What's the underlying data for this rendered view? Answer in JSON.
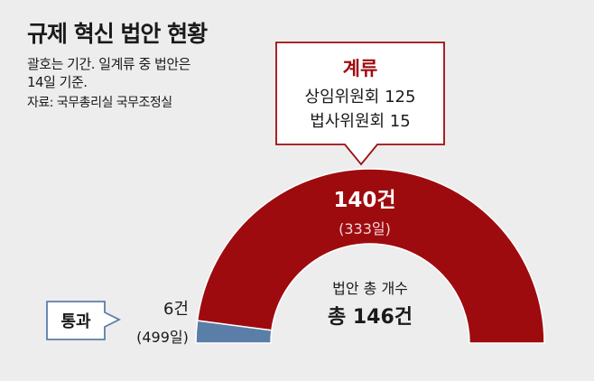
{
  "header": {
    "title": "규제 혁신 법안 현황",
    "note_line1": "괄호는 기간. 일계류 중 법안은",
    "note_line2": "14일 기준.",
    "source": "자료: 국무총리실 국무조정실"
  },
  "chart_data": {
    "type": "pie",
    "style": "semi-donut",
    "total_label": "법안 총 개수",
    "total_value_label": "총 146건",
    "total": 146,
    "segments": [
      {
        "category": "통과",
        "value": 6,
        "value_label": "6건",
        "duration_label": "(499일)",
        "color": "#5b7ea8"
      },
      {
        "category": "계류",
        "value": 140,
        "value_label": "140건",
        "duration_label": "(333일)",
        "color": "#9e0b0f",
        "breakdown": [
          {
            "label": "상임위원회 125"
          },
          {
            "label": "법사위원회 15"
          }
        ]
      }
    ]
  }
}
